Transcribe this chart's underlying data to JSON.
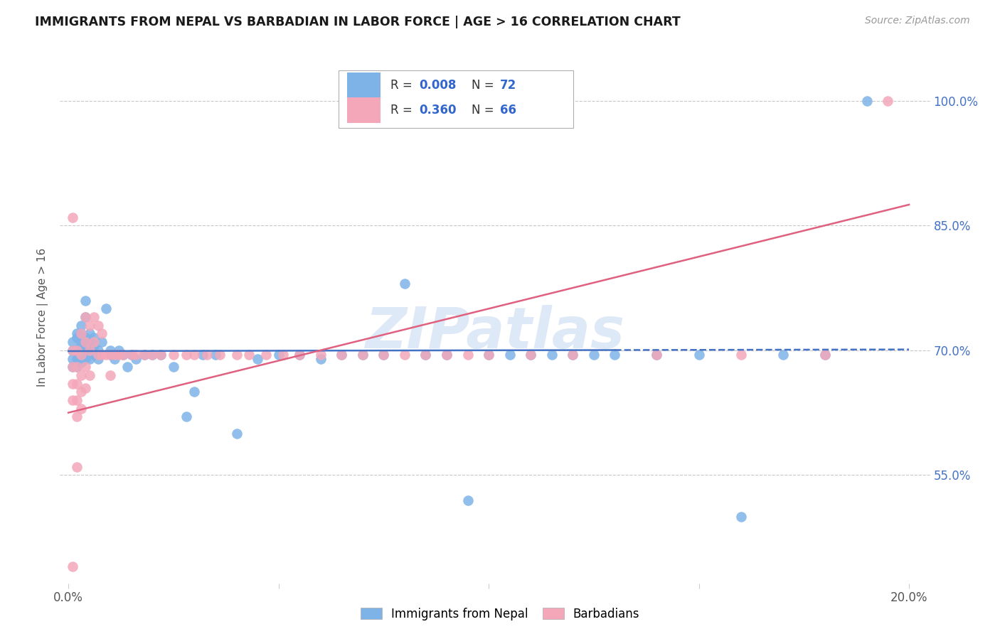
{
  "title": "IMMIGRANTS FROM NEPAL VS BARBADIAN IN LABOR FORCE | AGE > 16 CORRELATION CHART",
  "source": "Source: ZipAtlas.com",
  "ylabel": "In Labor Force | Age > 16",
  "xlim": [
    -0.002,
    0.205
  ],
  "ylim": [
    0.42,
    1.06
  ],
  "yticks": [
    0.55,
    0.7,
    0.85,
    1.0
  ],
  "ytick_labels": [
    "55.0%",
    "70.0%",
    "85.0%",
    "100.0%"
  ],
  "xticks": [
    0.0,
    0.05,
    0.1,
    0.15,
    0.2
  ],
  "xtick_labels": [
    "0.0%",
    "",
    "",
    "",
    "20.0%"
  ],
  "nepal_color": "#7eb3e8",
  "barbadian_color": "#f4a7b9",
  "nepal_line_color": "#4472c4",
  "barbadian_line_color": "#e06080",
  "watermark": "ZIPatlas",
  "background_color": "#ffffff",
  "grid_color": "#c8c8c8",
  "nepal_line_y0": 0.699,
  "nepal_line_y1": 0.701,
  "barb_line_y0": 0.625,
  "barb_line_y1": 0.875,
  "nepal_x": [
    0.001,
    0.001,
    0.001,
    0.001,
    0.002,
    0.002,
    0.002,
    0.002,
    0.002,
    0.003,
    0.003,
    0.003,
    0.003,
    0.003,
    0.003,
    0.004,
    0.004,
    0.004,
    0.004,
    0.004,
    0.005,
    0.005,
    0.005,
    0.005,
    0.006,
    0.006,
    0.006,
    0.007,
    0.007,
    0.008,
    0.009,
    0.01,
    0.01,
    0.011,
    0.012,
    0.013,
    0.014,
    0.015,
    0.016,
    0.018,
    0.02,
    0.022,
    0.025,
    0.028,
    0.03,
    0.032,
    0.035,
    0.04,
    0.045,
    0.05,
    0.055,
    0.06,
    0.065,
    0.07,
    0.075,
    0.08,
    0.085,
    0.09,
    0.095,
    0.1,
    0.105,
    0.11,
    0.115,
    0.12,
    0.125,
    0.13,
    0.14,
    0.15,
    0.16,
    0.17,
    0.18,
    0.19
  ],
  "nepal_y": [
    0.7,
    0.71,
    0.69,
    0.68,
    0.715,
    0.7,
    0.69,
    0.68,
    0.72,
    0.705,
    0.695,
    0.685,
    0.72,
    0.73,
    0.71,
    0.7,
    0.69,
    0.715,
    0.74,
    0.76,
    0.7,
    0.71,
    0.69,
    0.72,
    0.705,
    0.695,
    0.715,
    0.7,
    0.69,
    0.71,
    0.75,
    0.7,
    0.695,
    0.69,
    0.7,
    0.695,
    0.68,
    0.695,
    0.69,
    0.695,
    0.695,
    0.695,
    0.68,
    0.62,
    0.65,
    0.695,
    0.695,
    0.6,
    0.69,
    0.695,
    0.695,
    0.69,
    0.695,
    0.695,
    0.695,
    0.78,
    0.695,
    0.695,
    0.52,
    0.695,
    0.695,
    0.695,
    0.695,
    0.695,
    0.695,
    0.695,
    0.695,
    0.695,
    0.5,
    0.695,
    0.695,
    1.0
  ],
  "barb_x": [
    0.001,
    0.001,
    0.001,
    0.001,
    0.001,
    0.002,
    0.002,
    0.002,
    0.002,
    0.002,
    0.002,
    0.003,
    0.003,
    0.003,
    0.003,
    0.003,
    0.004,
    0.004,
    0.004,
    0.004,
    0.005,
    0.005,
    0.005,
    0.006,
    0.006,
    0.007,
    0.007,
    0.008,
    0.008,
    0.009,
    0.01,
    0.01,
    0.011,
    0.012,
    0.013,
    0.015,
    0.016,
    0.018,
    0.02,
    0.022,
    0.025,
    0.028,
    0.03,
    0.033,
    0.036,
    0.04,
    0.043,
    0.047,
    0.051,
    0.055,
    0.06,
    0.065,
    0.07,
    0.075,
    0.08,
    0.085,
    0.09,
    0.095,
    0.1,
    0.11,
    0.12,
    0.14,
    0.16,
    0.18,
    0.195,
    0.001
  ],
  "barb_y": [
    0.86,
    0.7,
    0.68,
    0.66,
    0.64,
    0.7,
    0.68,
    0.66,
    0.64,
    0.62,
    0.56,
    0.72,
    0.695,
    0.67,
    0.65,
    0.63,
    0.74,
    0.71,
    0.68,
    0.655,
    0.73,
    0.7,
    0.67,
    0.74,
    0.71,
    0.73,
    0.695,
    0.72,
    0.695,
    0.695,
    0.695,
    0.67,
    0.695,
    0.695,
    0.695,
    0.695,
    0.695,
    0.695,
    0.695,
    0.695,
    0.695,
    0.695,
    0.695,
    0.695,
    0.695,
    0.695,
    0.695,
    0.695,
    0.695,
    0.695,
    0.695,
    0.695,
    0.695,
    0.695,
    0.695,
    0.695,
    0.695,
    0.695,
    0.695,
    0.695,
    0.695,
    0.695,
    0.695,
    0.695,
    1.0,
    0.44
  ]
}
